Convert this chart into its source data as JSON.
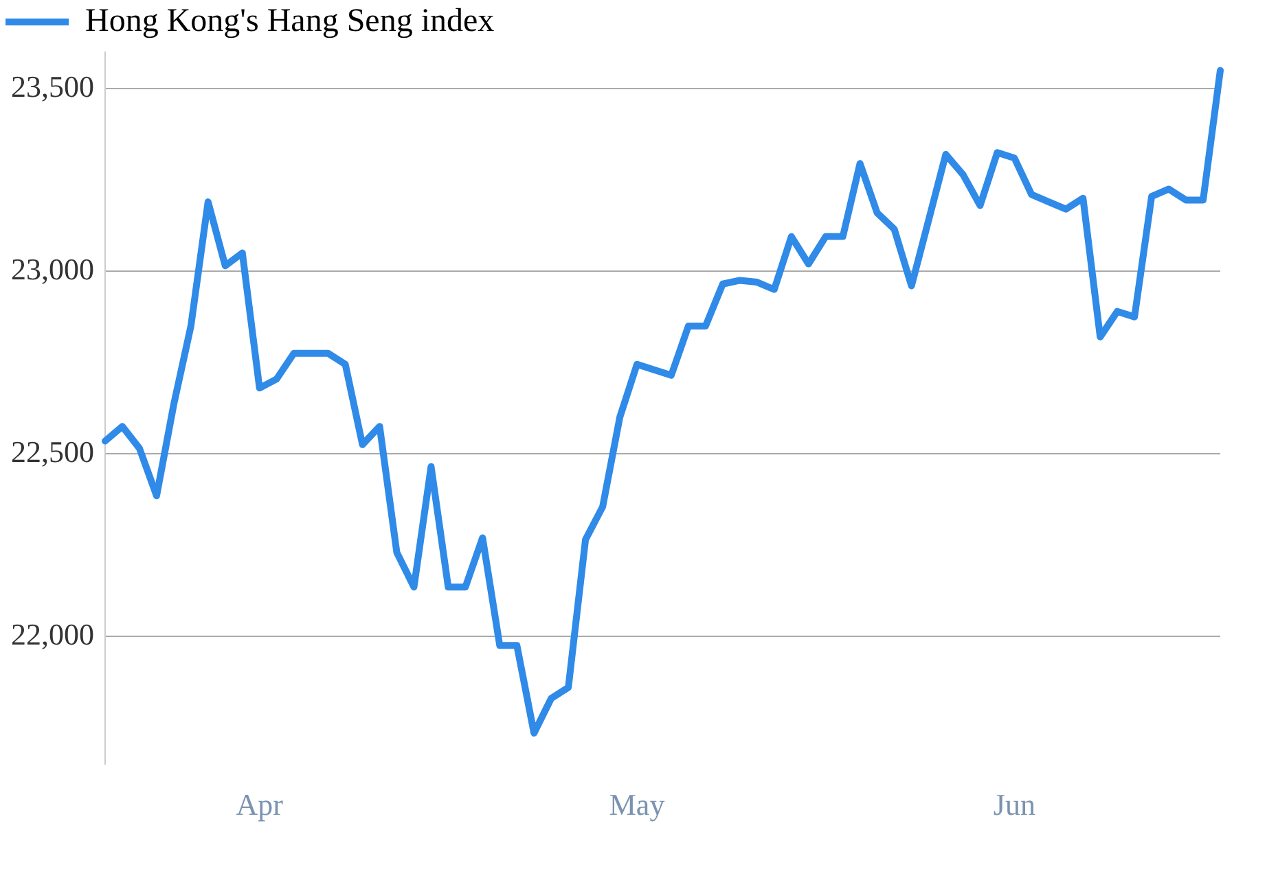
{
  "chart_data": {
    "type": "line",
    "categories": [
      null,
      null,
      null,
      null,
      null,
      null,
      null,
      null,
      null,
      "Apr",
      null,
      null,
      null,
      null,
      null,
      null,
      null,
      null,
      null,
      null,
      null,
      null,
      null,
      null,
      null,
      null,
      null,
      null,
      null,
      null,
      null,
      "May",
      null,
      null,
      null,
      null,
      null,
      null,
      null,
      null,
      null,
      null,
      null,
      null,
      null,
      null,
      null,
      null,
      null,
      null,
      null,
      null,
      null,
      "Jun",
      null,
      null,
      null,
      null,
      null,
      null,
      null,
      null,
      null,
      null,
      null,
      null
    ],
    "series": [
      {
        "name": "Hong Kong's Hang Seng index",
        "color": "#2f8ae8",
        "values": [
          22535,
          22575,
          22515,
          22385,
          22635,
          22850,
          23190,
          23015,
          23050,
          22680,
          22705,
          22775,
          22775,
          22775,
          22745,
          22525,
          22575,
          22230,
          22135,
          22465,
          22135,
          22135,
          22270,
          21975,
          21975,
          21735,
          21830,
          21860,
          22265,
          22355,
          22600,
          22745,
          22730,
          22715,
          22850,
          22850,
          22965,
          22975,
          22970,
          22950,
          23095,
          23020,
          23095,
          23095,
          23295,
          23160,
          23115,
          22960,
          23140,
          23320,
          23265,
          23180,
          23325,
          23310,
          23210,
          23190,
          23170,
          23200,
          22820,
          22890,
          22875,
          23205,
          23225,
          23195,
          23195,
          23550
        ]
      }
    ],
    "ylim": [
      21650,
      23600
    ],
    "yticks": [
      {
        "value": 22000,
        "label": "22,000"
      },
      {
        "value": 22500,
        "label": "22,500"
      },
      {
        "value": 23000,
        "label": "23,000"
      },
      {
        "value": 23500,
        "label": "23,500"
      }
    ],
    "grid": "y",
    "legend": "top left",
    "marker": "none",
    "line_style": "solid"
  }
}
